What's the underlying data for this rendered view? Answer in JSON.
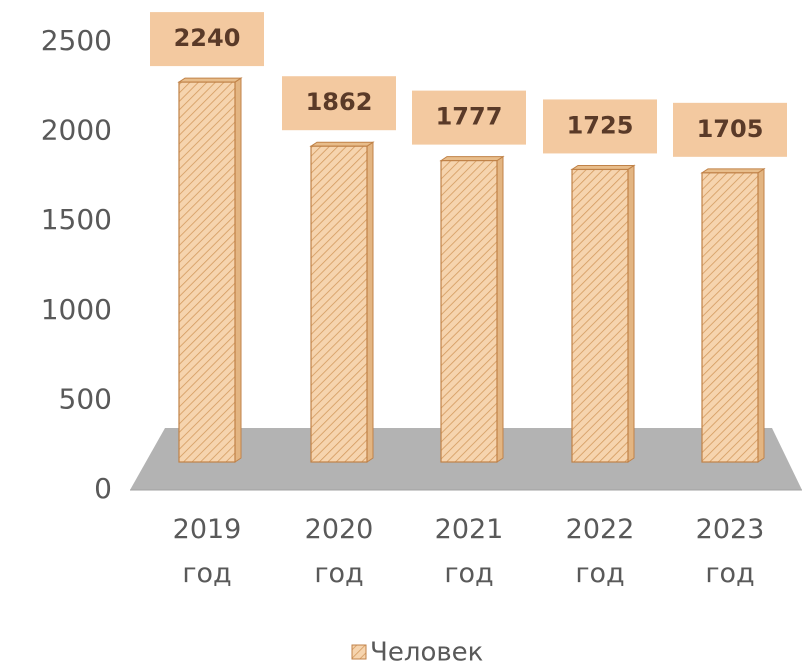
{
  "chart_data": {
    "type": "bar",
    "categories": [
      "2019 год",
      "2020 год",
      "2021 год",
      "2022 год",
      "2023 год"
    ],
    "series": [
      {
        "name": "Человек",
        "color": "#f6d4ae",
        "values": [
          2240,
          1862,
          1777,
          1725,
          1705
        ]
      }
    ],
    "ylim": [
      0,
      2500
    ],
    "yticks": [
      0,
      500,
      1000,
      1500,
      2000,
      2500
    ]
  }
}
